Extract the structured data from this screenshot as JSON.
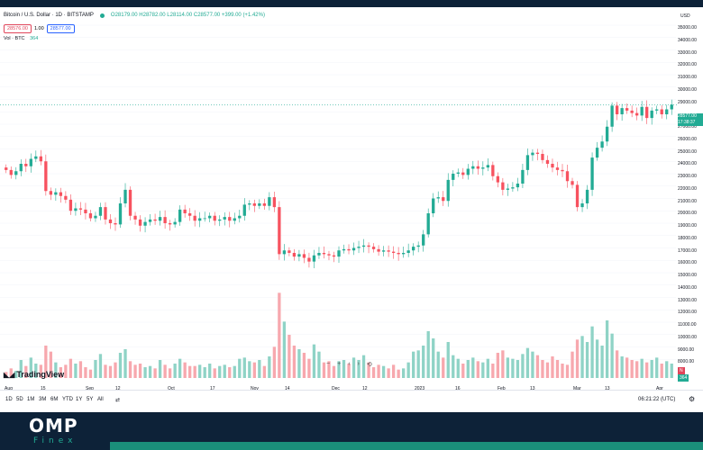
{
  "legend": {
    "symbol": "Bitcoin / U.S. Dollar · 1D · BITSTAMP",
    "ohlc": "O28179.00 H28782.00 L28114.00 C28577.00 +399.00 (+1.42%)",
    "sell_price": "28576.00",
    "spread": "1.00",
    "buy_price": "28577.00",
    "vol_label": "Vol · BTC",
    "vol_value": "364"
  },
  "axis": {
    "currency": "USD",
    "price_labels": [
      "35000.00",
      "34000.00",
      "33000.00",
      "32000.00",
      "31000.00",
      "30000.00",
      "29000.00",
      "27000.00",
      "26000.00",
      "25000.00",
      "24000.00",
      "23000.00",
      "22000.00",
      "21000.00",
      "20000.00",
      "19000.00",
      "18000.00",
      "17000.00",
      "16000.00",
      "15000.00",
      "14000.00",
      "13000.00",
      "12000.00",
      "11000.00",
      "10000.00",
      "9000.00",
      "8000.00"
    ],
    "current_price": "28577.00",
    "countdown": "17:38:37",
    "vol_badge_a": "N",
    "vol_badge_b": "364",
    "x_labels": [
      "Aug",
      "15",
      "Sep",
      "12",
      "Oct",
      "17",
      "Nov",
      "14",
      "Dec",
      "12",
      "2023",
      "16",
      "Feb",
      "13",
      "Mar",
      "13",
      "Apr"
    ]
  },
  "branding": {
    "tv": "TradingView"
  },
  "nav": {
    "zoom_out": "−",
    "zoom_in": "+",
    "back": "‹",
    "fwd": "›",
    "reset": "⟲"
  },
  "timeframes": [
    "1D",
    "5D",
    "1M",
    "3M",
    "6M",
    "YTD",
    "1Y",
    "5Y",
    "All"
  ],
  "clock": "06:21:22 (UTC)",
  "footer": {
    "brand": "OMP",
    "sub": "Finex"
  },
  "colors": {
    "up": "#22ab94",
    "down": "#f7525f",
    "vol_up": "#8fd3c6",
    "vol_down": "#f7a8ae"
  },
  "chart_data": {
    "type": "candlestick",
    "ylim": [
      15000,
      35000
    ],
    "closes": [
      23300,
      22900,
      23200,
      23800,
      23600,
      24200,
      24400,
      24000,
      21600,
      21300,
      21500,
      21200,
      20900,
      20000,
      20200,
      20100,
      19800,
      19400,
      19600,
      20300,
      19300,
      19000,
      18900,
      20600,
      21700,
      19600,
      19300,
      18800,
      19100,
      19300,
      19200,
      19500,
      19000,
      18900,
      19100,
      20100,
      19800,
      19600,
      19200,
      19400,
      19400,
      19600,
      19200,
      19300,
      19500,
      19200,
      19400,
      19600,
      20500,
      20600,
      20400,
      20600,
      20400,
      21100,
      20300,
      16500,
      16800,
      16600,
      16300,
      16500,
      16200,
      15900,
      16400,
      16600,
      16500,
      16400,
      16300,
      16800,
      16900,
      16800,
      17000,
      17100,
      17200,
      17100,
      16900,
      16700,
      16800,
      16700,
      16600,
      16500,
      16600,
      16800,
      17100,
      17200,
      18100,
      19800,
      21000,
      21100,
      20800,
      22500,
      23000,
      23100,
      22900,
      23400,
      23600,
      23400,
      23500,
      23700,
      22800,
      22300,
      21700,
      21800,
      21900,
      22200,
      23300,
      24500,
      24700,
      24600,
      24100,
      23800,
      23500,
      23300,
      23200,
      22400,
      22100,
      20300,
      20600,
      21700,
      24300,
      25100,
      25600,
      26800,
      28500,
      27800,
      28300,
      28100,
      27900,
      27700,
      28400,
      27500,
      28100,
      28200,
      27800,
      28200,
      28577
    ],
    "volumes": [
      8000,
      8300,
      8100,
      9000,
      8500,
      9200,
      8700,
      8600,
      10200,
      9700,
      8800,
      8400,
      8600,
      9100,
      8700,
      8900,
      8400,
      8200,
      9000,
      9500,
      8600,
      8500,
      8800,
      9600,
      9900,
      8900,
      8600,
      8700,
      8400,
      8500,
      8300,
      9000,
      8600,
      8300,
      8700,
      9100,
      8800,
      8500,
      8500,
      8600,
      8400,
      8700,
      8300,
      8500,
      8600,
      8400,
      8500,
      9100,
      9200,
      8900,
      8800,
      9000,
      8500,
      9300,
      10100,
      14600,
      12200,
      11100,
      10200,
      9900,
      9600,
      9100,
      10300,
      9700,
      8800,
      8900,
      8500,
      8900,
      9000,
      8700,
      9200,
      9000,
      9400,
      8800,
      8400,
      8600,
      8500,
      8300,
      8600,
      8200,
      8300,
      8800,
      9700,
      9800,
      10200,
      11400,
      10800,
      9700,
      9200,
      10500,
      9400,
      9100,
      8700,
      9000,
      9200,
      8900,
      8800,
      9100,
      8700,
      9600,
      9800,
      9200,
      9100,
      9000,
      9500,
      10000,
      9700,
      9400,
      9000,
      8800,
      9300,
      9000,
      8700,
      8600,
      9700,
      10700,
      11000,
      10500,
      11800,
      10700,
      10200,
      12300,
      11200,
      9800,
      9300,
      9200,
      9000,
      8900,
      9100,
      8800,
      9000,
      9200,
      8700,
      8900,
      8700
    ]
  }
}
